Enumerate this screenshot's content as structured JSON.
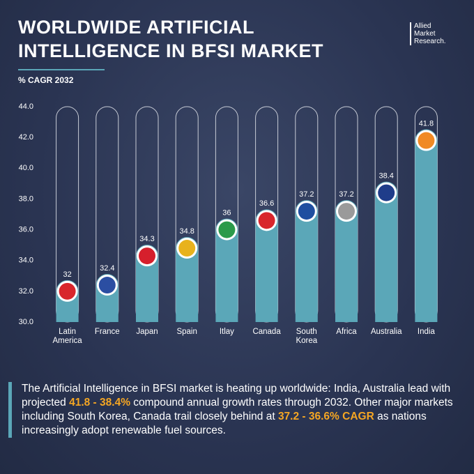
{
  "logo": [
    "Allied",
    "Market",
    "Research."
  ],
  "chart_data": {
    "type": "bar",
    "title": "WORLDWIDE ARTIFICIAL INTELLIGENCE IN BFSI MARKET",
    "subtitle": "% CAGR 2032",
    "categories": [
      "Latin America",
      "France",
      "Japan",
      "Spain",
      "Itlay",
      "Canada",
      "South Korea",
      "Africa",
      "Australia",
      "India"
    ],
    "values": [
      32,
      32.4,
      34.3,
      34.8,
      36,
      36.6,
      37.2,
      37.2,
      38.4,
      41.8
    ],
    "color": "#5ba7b8",
    "flag_colors": [
      "#d8262c",
      "#2b4ea2",
      "#d61f2c",
      "#e8b21c",
      "#2b9a4a",
      "#d8262c",
      "#1f4fa0",
      "#9a9a9a",
      "#1f3d8a",
      "#f08a24"
    ],
    "ylim": [
      30,
      44
    ],
    "yticks": [
      {
        "value": 30,
        "label": "30.0"
      },
      {
        "value": 32,
        "label": "32.0"
      },
      {
        "value": 34,
        "label": "34.0"
      },
      {
        "value": 36,
        "label": "36.0"
      },
      {
        "value": 38,
        "label": "38.0"
      },
      {
        "value": 40,
        "label": "40.0"
      },
      {
        "value": 42,
        "label": "42.0"
      },
      {
        "value": 44,
        "label": "44.0"
      }
    ]
  },
  "description": [
    {
      "text": "The Artificial Intelligence in BFSI market is heating up worldwide: India, Australia lead with projected ",
      "highlight": false
    },
    {
      "text": "41.8 - 38.4%",
      "highlight": true
    },
    {
      "text": " compound annual growth rates through 2032. Other major markets including South Korea, Canada trail closely behind at ",
      "highlight": false
    },
    {
      "text": "37.2 - 36.6% CAGR",
      "highlight": true
    },
    {
      "text": " as nations increasingly adopt renewable fuel sources.",
      "highlight": false
    }
  ]
}
